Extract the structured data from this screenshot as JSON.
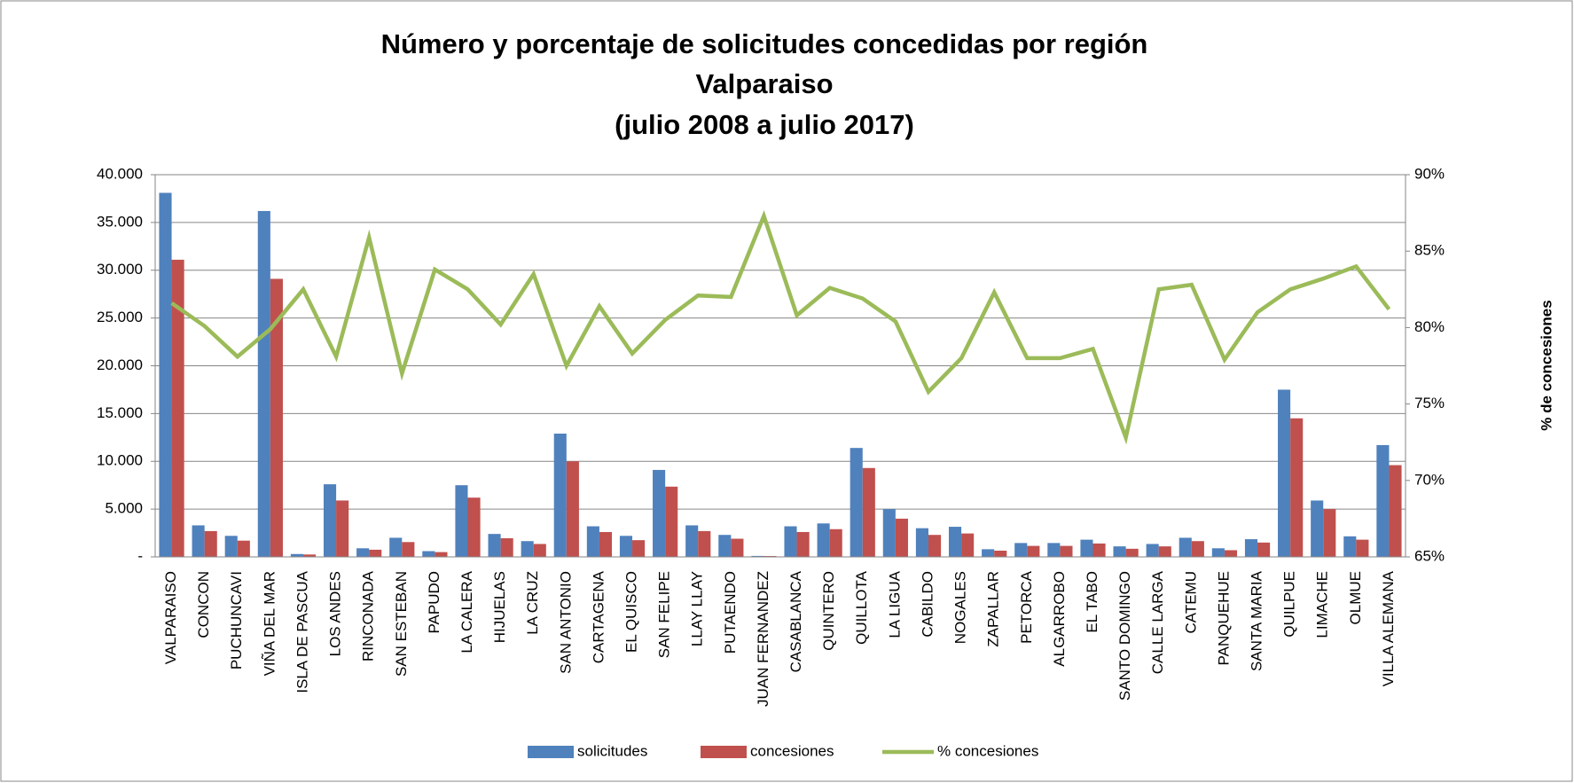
{
  "chart_data": {
    "type": "bar_line",
    "title": [
      "Número y porcentaje de solicitudes concedidas por región",
      "Valparaiso",
      "(julio 2008 a julio 2017)"
    ],
    "y2_label": "% de concesiones",
    "categories": [
      "VALPARAISO",
      "CONCON",
      "PUCHUNCAVI",
      "VIÑA DEL MAR",
      "ISLA DE PASCUA",
      "LOS ANDES",
      "RINCONADA",
      "SAN ESTEBAN",
      "PAPUDO",
      "LA CALERA",
      "HIJUELAS",
      "LA CRUZ",
      "SAN ANTONIO",
      "CARTAGENA",
      "EL QUISCO",
      "SAN FELIPE",
      "LLAY LLAY",
      "PUTAENDO",
      "JUAN FERNANDEZ",
      "CASABLANCA",
      "QUINTERO",
      "QUILLOTA",
      "LA LIGUA",
      "CABILDO",
      "NOGALES",
      "ZAPALLAR",
      "PETORCA",
      "ALGARROBO",
      "EL TABO",
      "SANTO DOMINGO",
      "CALLE LARGA",
      "CATEMU",
      "PANQUEHUE",
      "SANTA MARIA",
      "QUILPUE",
      "LIMACHE",
      "OLMUE",
      "VILLA ALEMANA"
    ],
    "series": [
      {
        "name": "solicitudes",
        "type": "bar",
        "color": "#4f81bd",
        "values": [
          38100,
          3300,
          2200,
          36200,
          300,
          7600,
          900,
          2000,
          600,
          7500,
          2400,
          1650,
          12900,
          3200,
          2200,
          9100,
          3300,
          2300,
          100,
          3200,
          3500,
          11400,
          5000,
          3000,
          3150,
          800,
          1450,
          1450,
          1800,
          1100,
          1350,
          2000,
          900,
          1850,
          17500,
          5900,
          2150,
          11700
        ]
      },
      {
        "name": "concesiones",
        "type": "bar",
        "color": "#c0504d",
        "values": [
          31100,
          2700,
          1700,
          29100,
          250,
          5900,
          750,
          1550,
          500,
          6200,
          1950,
          1350,
          10000,
          2600,
          1750,
          7350,
          2700,
          1900,
          90,
          2600,
          2900,
          9300,
          4000,
          2300,
          2450,
          650,
          1150,
          1150,
          1400,
          850,
          1100,
          1650,
          700,
          1500,
          14500,
          5000,
          1800,
          9600
        ]
      },
      {
        "name": "% concesiones",
        "type": "line",
        "axis": "y2",
        "color": "#9bbb59",
        "values": [
          81.6,
          80.1,
          78.1,
          79.9,
          82.5,
          78.1,
          85.9,
          77.0,
          83.8,
          82.5,
          80.2,
          83.5,
          77.5,
          81.4,
          78.3,
          80.5,
          82.1,
          82.0,
          87.3,
          80.8,
          82.6,
          81.9,
          80.4,
          75.8,
          78.0,
          82.3,
          78.0,
          78.0,
          78.6,
          72.8,
          82.5,
          82.8,
          77.9,
          81.0,
          82.5,
          83.2,
          84.0,
          81.2
        ]
      }
    ],
    "ylim": [
      0,
      40000
    ],
    "yticks": [
      {
        "value": 0,
        "label": "-"
      },
      {
        "value": 5000,
        "label": "5.000"
      },
      {
        "value": 10000,
        "label": "10.000"
      },
      {
        "value": 15000,
        "label": "15.000"
      },
      {
        "value": 20000,
        "label": "20.000"
      },
      {
        "value": 25000,
        "label": "25.000"
      },
      {
        "value": 30000,
        "label": "30.000"
      },
      {
        "value": 35000,
        "label": "35.000"
      },
      {
        "value": 40000,
        "label": "40.000"
      }
    ],
    "y2lim": [
      65,
      90
    ],
    "y2ticks": [
      {
        "value": 65,
        "label": "65%"
      },
      {
        "value": 70,
        "label": "70%"
      },
      {
        "value": 75,
        "label": "75%"
      },
      {
        "value": 80,
        "label": "80%"
      },
      {
        "value": 85,
        "label": "85%"
      },
      {
        "value": 90,
        "label": "90%"
      }
    ],
    "grid": true,
    "legend": "bottom"
  }
}
